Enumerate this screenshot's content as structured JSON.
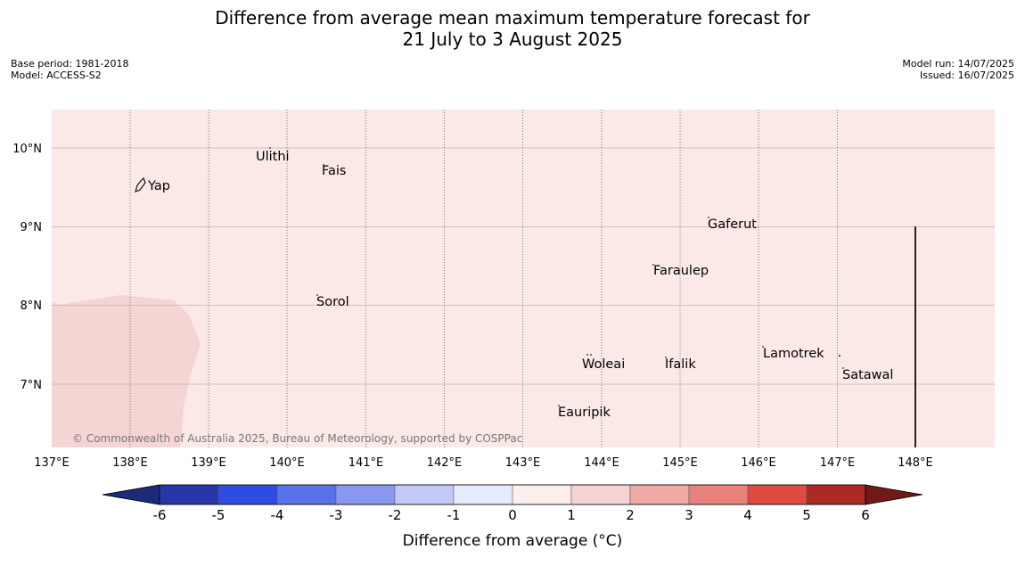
{
  "header": {
    "title_line1": "Difference from average mean maximum temperature forecast for",
    "title_line2": "21 July to 3 August 2025",
    "base_period": "Base period: 1981-2018",
    "model": "Model: ACCESS-S2",
    "model_run": "Model run: 14/07/2025",
    "issued": "Issued: 16/07/2025"
  },
  "map": {
    "background_color": "#fbe9e8",
    "region_color": "#f4d5d4",
    "lon_labels": [
      "137°E",
      "138°E",
      "139°E",
      "140°E",
      "141°E",
      "142°E",
      "143°E",
      "144°E",
      "145°E",
      "146°E",
      "147°E",
      "148°E"
    ],
    "lat_labels": [
      "10°N",
      "9°N",
      "8°N",
      "7°N"
    ],
    "places": [
      {
        "name": "Yap"
      },
      {
        "name": "Ulithi"
      },
      {
        "name": "Fais"
      },
      {
        "name": "Gaferut"
      },
      {
        "name": "Faraulep"
      },
      {
        "name": "Sorol"
      },
      {
        "name": "Lamotrek"
      },
      {
        "name": "Satawal"
      },
      {
        "name": "Woleai"
      },
      {
        "name": "Ifalik"
      },
      {
        "name": "Eauripik"
      }
    ],
    "credit": "© Commonwealth of Australia 2025, Bureau of Meteorology, supported by COSPPac"
  },
  "colorbar": {
    "tick_labels": [
      "-6",
      "-5",
      "-4",
      "-3",
      "-2",
      "-1",
      "0",
      "1",
      "2",
      "3",
      "4",
      "5",
      "6"
    ],
    "title": "Difference from average (°C)",
    "under_color": "#1b2a7a",
    "over_color": "#6e1a16",
    "colors": [
      "#2737a8",
      "#2f4ce0",
      "#5a72e8",
      "#8798ee",
      "#c2c9f6",
      "#e8ebfc",
      "#fdeeee",
      "#f6d2d2",
      "#efaaa6",
      "#e8827c",
      "#dd4c40",
      "#ab2a23"
    ]
  }
}
